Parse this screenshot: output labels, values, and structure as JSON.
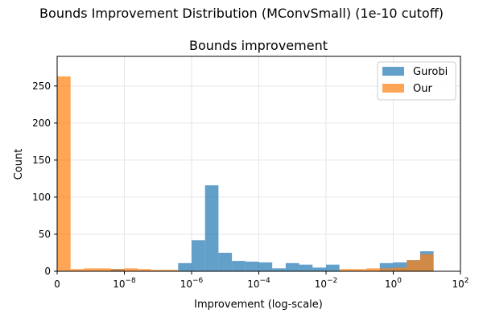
{
  "figure_title": "Bounds Improvement Distribution (MConvSmall) (1e-10 cutoff)",
  "chart_data": {
    "type": "bar",
    "title": "Bounds improvement",
    "xlabel": "Improvement (log-scale)",
    "ylabel": "Count",
    "x_scale": "log",
    "xlim": [
      1e-10,
      100
    ],
    "ylim": [
      0,
      290
    ],
    "x_tick_labels": [
      {
        "value": 1e-10,
        "label": "0"
      },
      {
        "value": 1e-08,
        "label": "10",
        "exp": "−8"
      },
      {
        "value": 1e-06,
        "label": "10",
        "exp": "−6"
      },
      {
        "value": 0.0001,
        "label": "10",
        "exp": "−4"
      },
      {
        "value": 0.01,
        "label": "10",
        "exp": "−2"
      },
      {
        "value": 1,
        "label": "10",
        "exp": "0"
      },
      {
        "value": 100,
        "label": "10",
        "exp": "2"
      }
    ],
    "y_ticks": [
      0,
      50,
      100,
      150,
      200,
      250
    ],
    "bin_edges": [
      1e-10,
      2.51e-10,
      6.31e-10,
      1.585e-09,
      3.98e-09,
      1e-08,
      2.51e-08,
      6.31e-08,
      1.585e-07,
      3.98e-07,
      1e-06,
      2.51e-06,
      6.31e-06,
      1.585e-05,
      3.98e-05,
      0.0001,
      0.000251,
      0.000631,
      0.001585,
      0.00398,
      0.01,
      0.0251,
      0.0631,
      0.1585,
      0.398,
      1,
      2.51,
      6.31,
      15.85
    ],
    "series": [
      {
        "name": "Gurobi",
        "color": "#1f77b4",
        "values": [
          0,
          0,
          0,
          0,
          3,
          0,
          0,
          0,
          0,
          11,
          42,
          116,
          25,
          14,
          13,
          12,
          4,
          11,
          9,
          5,
          9,
          0,
          0,
          0,
          11,
          12,
          15,
          27,
          3
        ]
      },
      {
        "name": "Our",
        "color": "#ff7f0e",
        "values": [
          263,
          3,
          4,
          4,
          3,
          4,
          3,
          2,
          2,
          0,
          0,
          0,
          0,
          0,
          0,
          0,
          0,
          0,
          0,
          0,
          0,
          3,
          3,
          4,
          4,
          5,
          15,
          23,
          0
        ]
      }
    ],
    "legend_position": "top-right",
    "grid": true
  }
}
